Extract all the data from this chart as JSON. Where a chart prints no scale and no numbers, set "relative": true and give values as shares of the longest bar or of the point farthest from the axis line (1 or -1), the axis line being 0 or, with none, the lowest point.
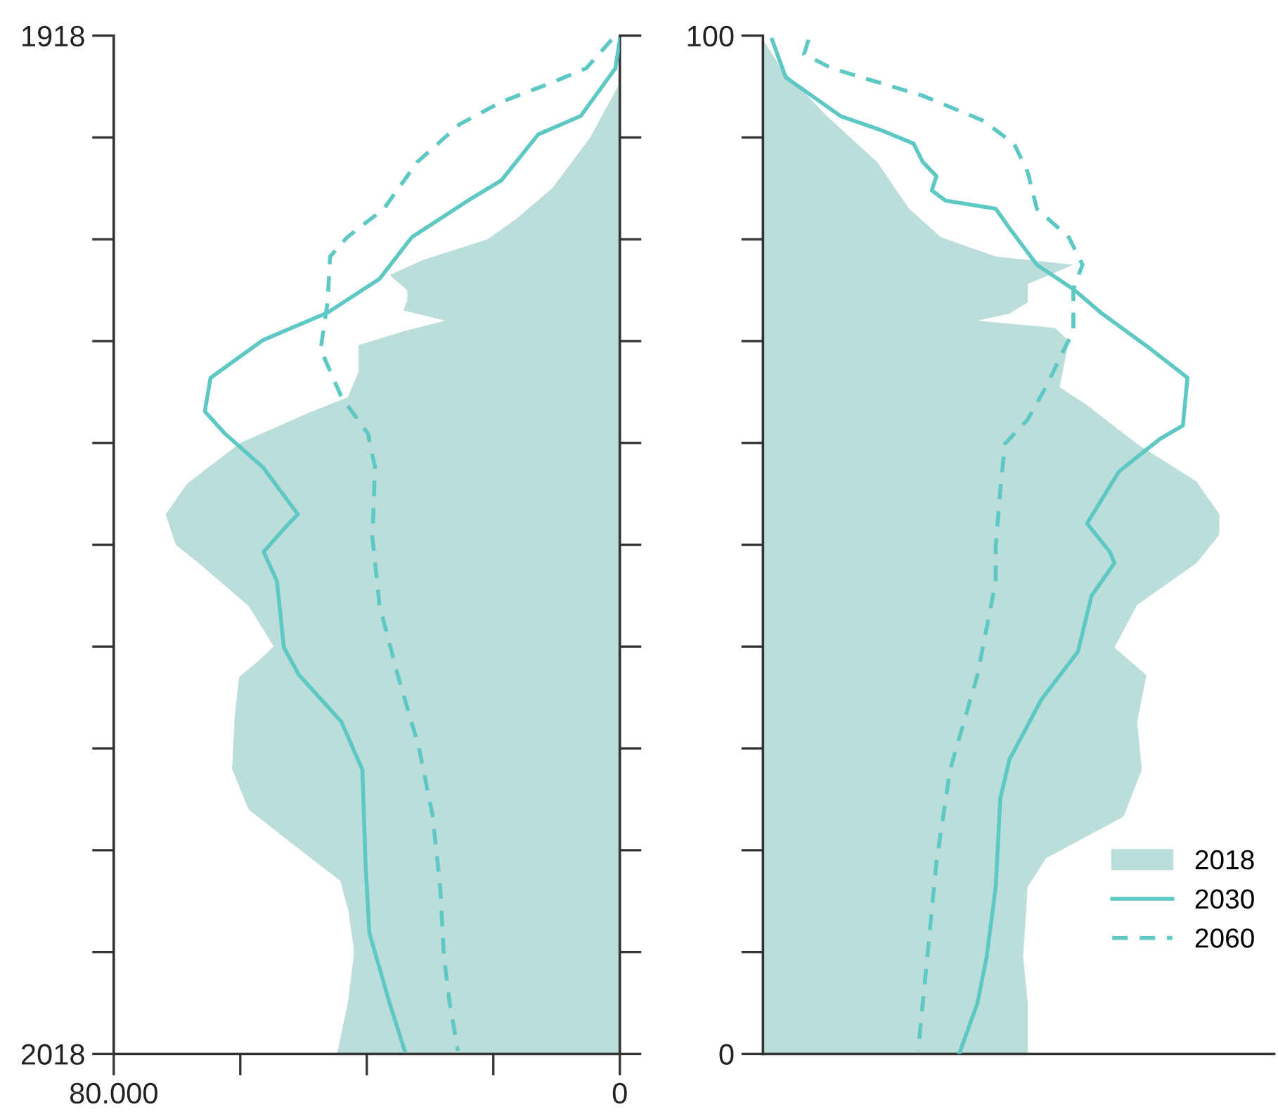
{
  "chart_data": [
    {
      "type": "area",
      "orientation": "horizontal",
      "xlim": [
        80000,
        0
      ],
      "xticks": [
        {
          "value": 80000,
          "label": "80.000"
        },
        {
          "value": 60000,
          "label": null
        },
        {
          "value": 40000,
          "label": null
        },
        {
          "value": 20000,
          "label": null
        },
        0
      ],
      "ylim": [
        2018,
        1918
      ],
      "yticks": [
        1918,
        {
          "value": 1928,
          "label": null
        },
        {
          "value": 1938,
          "label": null
        },
        {
          "value": 1948,
          "label": null
        },
        {
          "value": 1958,
          "label": null
        },
        {
          "value": 1968,
          "label": null
        },
        {
          "value": 1978,
          "label": null
        },
        {
          "value": 1988,
          "label": null
        },
        {
          "value": 1998,
          "label": null
        },
        {
          "value": 2008,
          "label": null
        },
        2018
      ],
      "grid": false,
      "legend": false,
      "series": [
        {
          "type": "area",
          "color": "#bcdeda",
          "x": [
            1918,
            1923,
            1928,
            1933,
            1936,
            1938,
            1940,
            1941.5,
            1943,
            1944,
            1945,
            1946,
            1947,
            1948.4,
            1951,
            1953.5,
            1955,
            1958,
            1962,
            1965,
            1968,
            1970,
            1974,
            1978,
            1979.5,
            1981,
            1985,
            1990,
            1994,
            1999,
            2001,
            2004,
            2008,
            2013,
            2018
          ],
          "values": [
            0,
            300,
            4700,
            10700,
            16400,
            20900,
            31000,
            36400,
            33600,
            33600,
            34200,
            27600,
            34000,
            41300,
            41300,
            43000,
            49000,
            60000,
            68400,
            71800,
            70200,
            66200,
            58700,
            54700,
            57300,
            60200,
            60900,
            61300,
            58700,
            48400,
            44200,
            42900,
            42000,
            43000,
            44700
          ]
        },
        {
          "type": "line",
          "line_style": "solid",
          "color": "#5ec8c4",
          "x": [
            1918.4,
            1921.2,
            1925.9,
            1927.7,
            1932.2,
            1934.2,
            1937.8,
            1941.9,
            1945.2,
            1947.9,
            1951.6,
            1954.9,
            1957.1,
            1960.4,
            1965,
            1966.3,
            1968.7,
            1971.6,
            1978.1,
            1980.8,
            1985.4,
            1990.1,
            1999.2,
            2006.1,
            2013,
            2017.7
          ],
          "values": [
            0,
            700,
            6200,
            12900,
            18700,
            24000,
            32900,
            38000,
            46200,
            56400,
            64700,
            65600,
            62400,
            56400,
            50900,
            52900,
            56300,
            54200,
            53100,
            50700,
            44000,
            40700,
            40200,
            39600,
            36400,
            34000
          ]
        },
        {
          "type": "line",
          "line_style": "dashed",
          "color": "#5ec8c4",
          "x": [
            1918.4,
            1921.2,
            1922.6,
            1924.5,
            1926.7,
            1930.4,
            1935,
            1937.8,
            1939.7,
            1944.2,
            1948.8,
            1953.5,
            1957.1,
            1960.4,
            1967.3,
            1973.9,
            1980.8,
            1987.8,
            1994.6,
            2001.6,
            2008.5,
            2013,
            2017.7
          ],
          "values": [
            1300,
            5300,
            10700,
            18700,
            25300,
            32000,
            37300,
            43100,
            45800,
            46200,
            47300,
            44000,
            39800,
            38700,
            39100,
            38000,
            35100,
            31800,
            29600,
            28400,
            27800,
            26900,
            25600
          ]
        }
      ]
    },
    {
      "type": "area",
      "orientation": "horizontal",
      "relative": true,
      "ylim": [
        0,
        100
      ],
      "yticks": [
        0,
        {
          "value": 10,
          "label": null
        },
        {
          "value": 20,
          "label": null
        },
        {
          "value": 30,
          "label": null
        },
        {
          "value": 40,
          "label": null
        },
        {
          "value": 50,
          "label": null
        },
        {
          "value": 60,
          "label": null
        },
        {
          "value": 70,
          "label": null
        },
        {
          "value": 80,
          "label": null
        },
        {
          "value": 90,
          "label": null
        },
        100
      ],
      "tick_labels": "y",
      "grid": false,
      "legend": "bottom right",
      "series": [
        {
          "type": "area",
          "name": "2018",
          "color": "#bcdeda",
          "x": [
            99.6,
            96.8,
            92.1,
            87.6,
            83,
            80.2,
            78.3,
            77.5,
            75.6,
            73.8,
            72.7,
            72,
            71.3,
            70,
            65.5,
            63.7,
            59.9,
            56.2,
            53,
            51,
            48.2,
            44.1,
            39.9,
            37.2,
            32.6,
            27.9,
            23.3,
            19.2,
            16.4,
            9.5,
            5,
            0
          ],
          "values": [
            0,
            0.04,
            0.14,
            0.25,
            0.32,
            0.39,
            0.51,
            0.68,
            0.58,
            0.58,
            0.54,
            0.47,
            0.64,
            0.67,
            0.65,
            0.71,
            0.82,
            0.95,
            1,
            1,
            0.95,
            0.82,
            0.77,
            0.84,
            0.82,
            0.83,
            0.79,
            0.62,
            0.58,
            0.57,
            0.58,
            0.58
          ]
        },
        {
          "type": "line",
          "name": "2030",
          "line_style": "solid",
          "color": "#5ec8c4",
          "x": [
            99.6,
            95.9,
            92.1,
            90.7,
            89.4,
            87.6,
            86.2,
            84.8,
            83.8,
            83,
            81.1,
            77.5,
            75.1,
            72.8,
            69.2,
            66.4,
            61.7,
            60.4,
            57.2,
            52.1,
            49.3,
            48.2,
            45,
            39.5,
            34.8,
            28.9,
            25.1,
            16.4,
            9.5,
            5,
            0
          ],
          "values": [
            0.02,
            0.05,
            0.17,
            0.26,
            0.33,
            0.35,
            0.38,
            0.37,
            0.4,
            0.51,
            0.54,
            0.6,
            0.68,
            0.74,
            0.85,
            0.93,
            0.92,
            0.87,
            0.78,
            0.71,
            0.76,
            0.77,
            0.72,
            0.69,
            0.61,
            0.54,
            0.52,
            0.51,
            0.49,
            0.47,
            0.43
          ]
        },
        {
          "type": "line",
          "name": "2060",
          "line_style": "dashed",
          "color": "#5ec8c4",
          "x": [
            99.6,
            98.2,
            96.8,
            94.1,
            91.7,
            89.4,
            86.6,
            83,
            80.2,
            77.5,
            75.1,
            71,
            69.2,
            65.5,
            62.3,
            59.9,
            55.4,
            49.9,
            46.4,
            37.2,
            27.9,
            18.8,
            9.5,
            0.3
          ],
          "values": [
            0.1,
            0.09,
            0.15,
            0.35,
            0.48,
            0.55,
            0.58,
            0.6,
            0.67,
            0.7,
            0.68,
            0.68,
            0.66,
            0.62,
            0.58,
            0.53,
            0.52,
            0.51,
            0.51,
            0.47,
            0.41,
            0.38,
            0.36,
            0.34
          ]
        }
      ]
    }
  ]
}
